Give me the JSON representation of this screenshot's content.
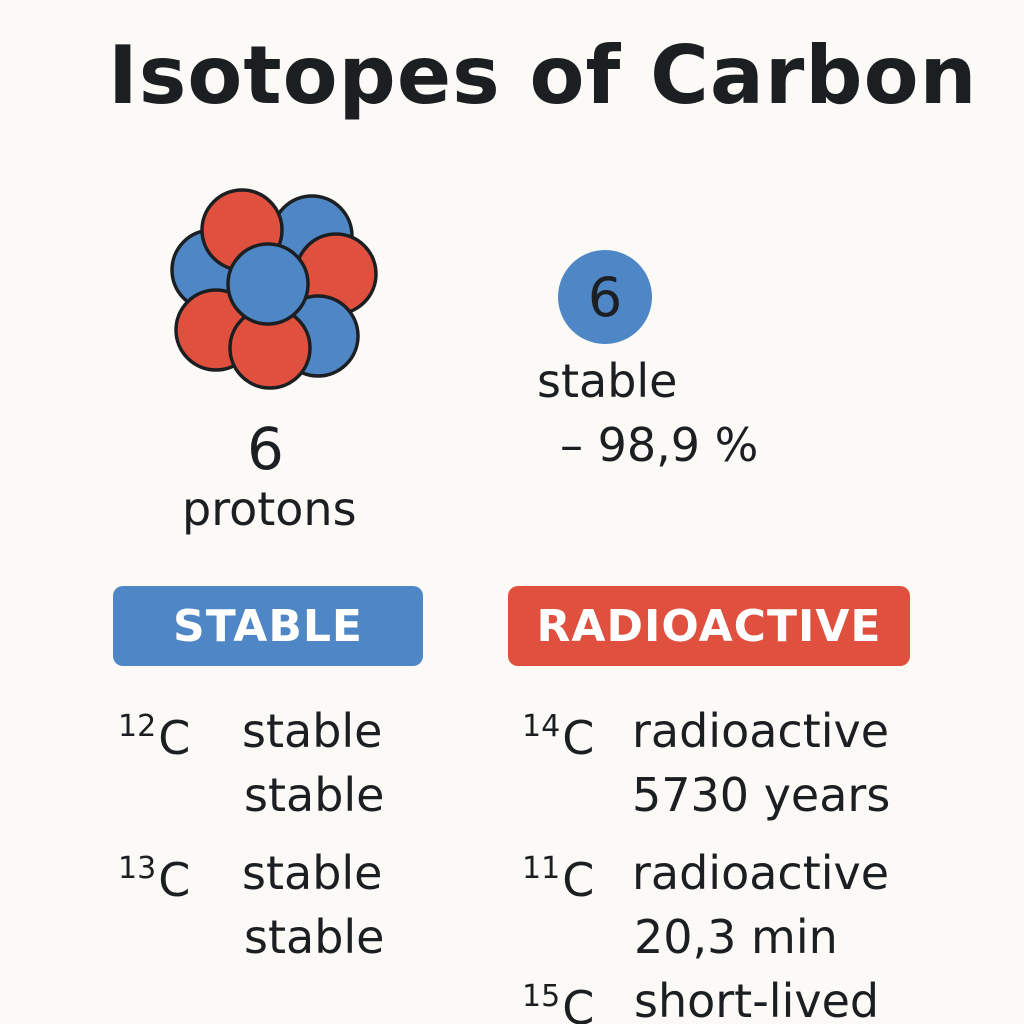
{
  "title": "Isotopes of Carbon",
  "left_panel": {
    "number": "6",
    "label": "protons"
  },
  "right_panel": {
    "circle_number": "6",
    "status": "stable",
    "abundance": "– 98,9 %"
  },
  "columns": {
    "stable": {
      "header": "STABLE",
      "color": "#4f86c6",
      "isotopes": [
        {
          "mass": "12",
          "element": "C",
          "line1": "stable",
          "line2": "stable"
        },
        {
          "mass": "13",
          "element": "C",
          "line1": "stable",
          "line2": "stable"
        }
      ]
    },
    "radioactive": {
      "header": "RADIOACTIVE",
      "color": "#e0503f",
      "isotopes": [
        {
          "mass": "14",
          "element": "C",
          "line1": "radioactive",
          "line2": "5730 years"
        },
        {
          "mass": "11",
          "element": "C",
          "line1": "radioactive",
          "line2": "20,3 min"
        },
        {
          "mass": "15",
          "element": "C",
          "line1": "short-lived",
          "line2": ""
        }
      ]
    }
  },
  "colors": {
    "proton": "#e0503f",
    "neutron": "#4f86c6",
    "outline": "#1c1f22"
  }
}
